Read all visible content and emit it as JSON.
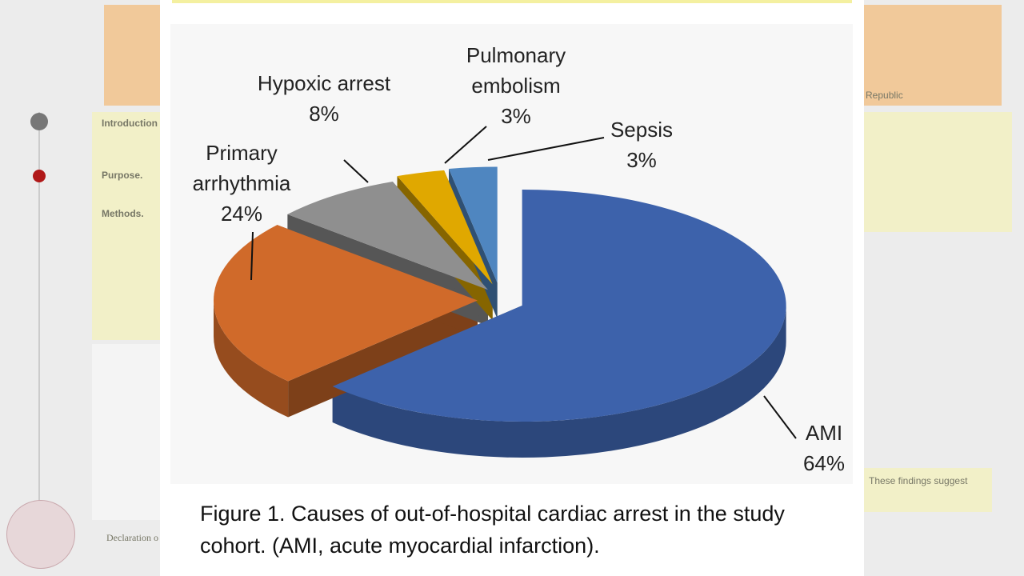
{
  "chart_data": {
    "type": "pie",
    "categories": [
      "AMI",
      "Primary arrhythmia",
      "Hypoxic arrest",
      "Pulmonary embolism",
      "Sepsis"
    ],
    "values": [
      64,
      24,
      8,
      3,
      3
    ],
    "value_labels": [
      "64%",
      "24%",
      "8%",
      "3%",
      "3%"
    ],
    "colors": [
      "#3d62ab",
      "#d06a2a",
      "#8f8f8f",
      "#e0a800",
      "#4f86c0"
    ],
    "caption": "Figure 1. Causes of out-of-hospital cardiac arrest in the study cohort. (AMI, acute myocardial infarction)."
  },
  "background_poster": {
    "left": [
      "Introduction",
      "Purpose.",
      "Methods.",
      "Declaration o"
    ],
    "right": [
      "Republic",
      "These findings suggest"
    ]
  }
}
